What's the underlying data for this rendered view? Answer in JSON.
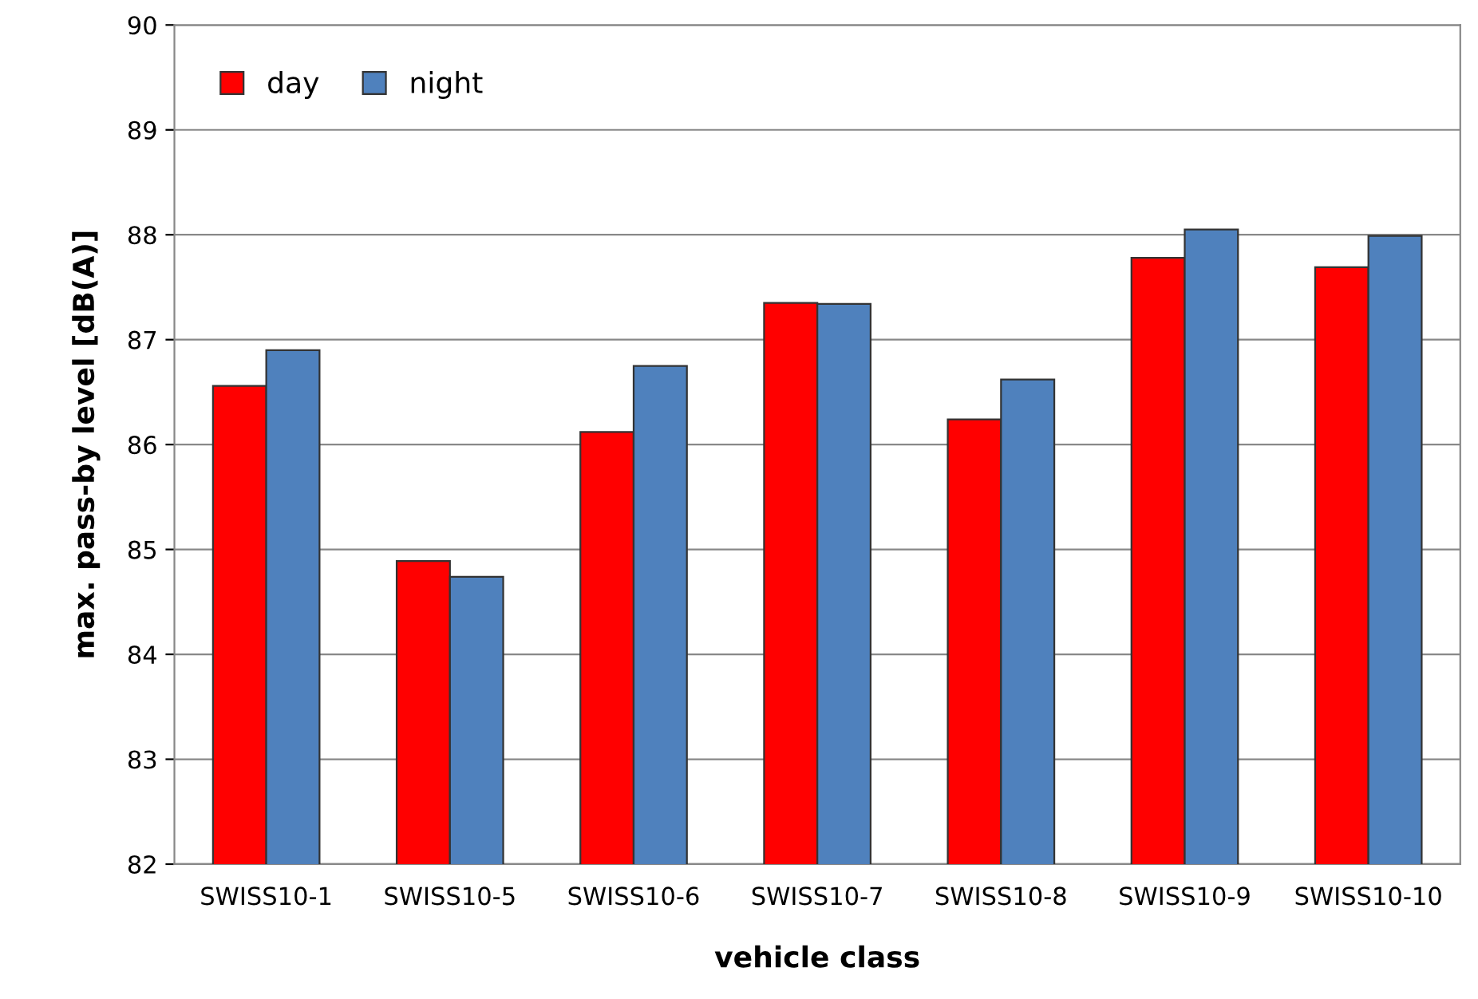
{
  "chart_data": {
    "type": "bar",
    "xlabel": "vehicle class",
    "ylabel": "max. pass-by level [dB(A)]",
    "categories": [
      "SWISS10-1",
      "SWISS10-5",
      "SWISS10-6",
      "SWISS10-7",
      "SWISS10-8",
      "SWISS10-9",
      "SWISS10-10"
    ],
    "series": [
      {
        "name": "day",
        "color": "#ff0000",
        "values": [
          86.56,
          84.89,
          86.12,
          87.35,
          86.24,
          87.78,
          87.69
        ]
      },
      {
        "name": "night",
        "color": "#4f81bd",
        "values": [
          86.9,
          84.74,
          86.75,
          87.34,
          86.62,
          88.05,
          87.99
        ]
      }
    ],
    "ylim": [
      82,
      90
    ],
    "yticks": [
      82,
      83,
      84,
      85,
      86,
      87,
      88,
      89,
      90
    ],
    "grid": "y",
    "legend": "top left"
  }
}
